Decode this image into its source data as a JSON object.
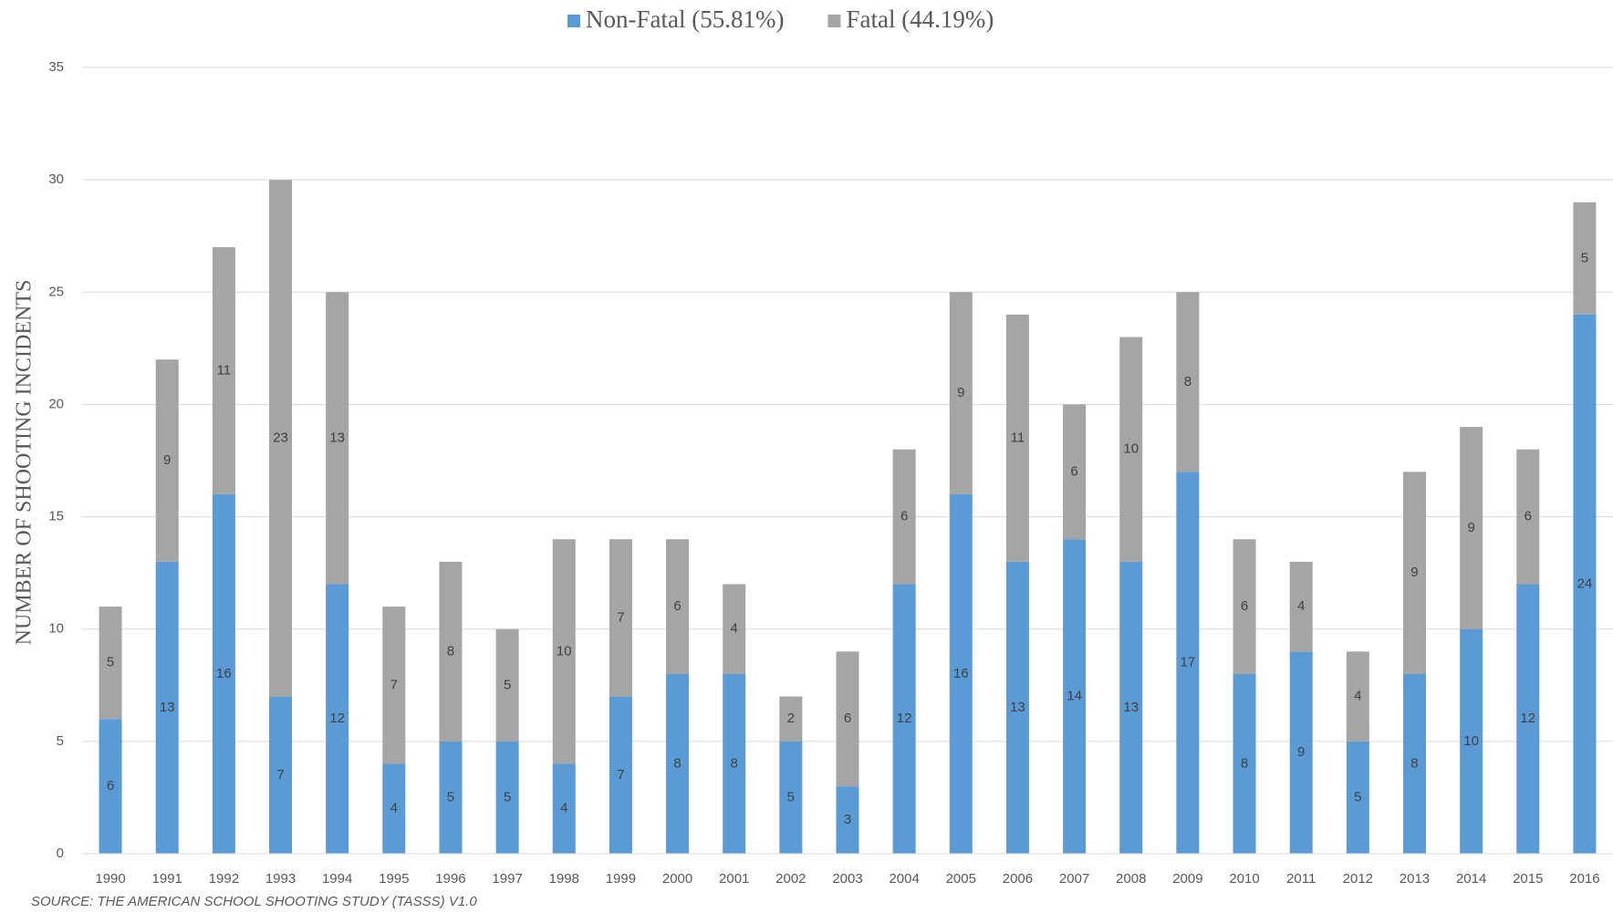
{
  "chart_data": {
    "type": "stacked_bar",
    "y_label": "NUMBER OF SHOOTING INCIDENTS",
    "source": "SOURCE: THE AMERICAN SCHOOL SHOOTING STUDY (TASSS) V1.0",
    "categories": [
      "1990",
      "1991",
      "1992",
      "1993",
      "1994",
      "1995",
      "1996",
      "1997",
      "1998",
      "1999",
      "2000",
      "2001",
      "2002",
      "2003",
      "2004",
      "2005",
      "2006",
      "2007",
      "2008",
      "2009",
      "2010",
      "2011",
      "2012",
      "2013",
      "2014",
      "2015",
      "2016"
    ],
    "series": [
      {
        "name": "Non-Fatal (55.81%)",
        "color": "#5b9bd5",
        "values": [
          6,
          13,
          16,
          7,
          12,
          4,
          5,
          5,
          4,
          7,
          8,
          8,
          5,
          3,
          12,
          16,
          13,
          14,
          13,
          17,
          8,
          9,
          5,
          8,
          10,
          12,
          24
        ]
      },
      {
        "name": "Fatal (44.19%)",
        "color": "#a5a5a5",
        "values": [
          5,
          9,
          11,
          23,
          13,
          7,
          8,
          5,
          10,
          7,
          6,
          4,
          2,
          6,
          6,
          9,
          11,
          6,
          10,
          8,
          6,
          4,
          4,
          9,
          9,
          6,
          5
        ]
      }
    ],
    "ylim": [
      0,
      35
    ],
    "yticks": [
      0,
      5,
      10,
      15,
      20,
      25,
      30,
      35
    ],
    "grid": true,
    "legend": "top"
  }
}
